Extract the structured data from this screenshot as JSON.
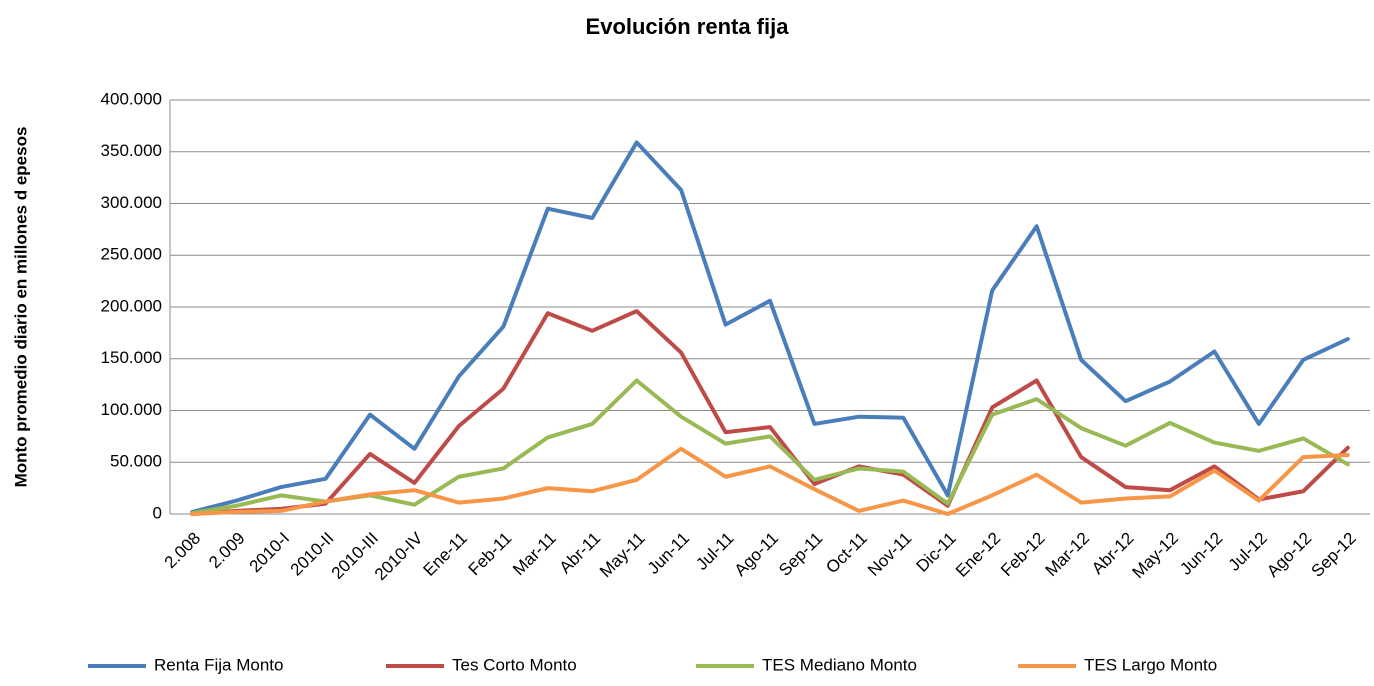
{
  "chart_data": {
    "type": "line",
    "title": "Evolución renta fija",
    "y_label": "Monto promedio diario en millones d epesos",
    "categories": [
      "2.008",
      "2.009",
      "2010-I",
      "2010-II",
      "2010-III",
      "2010-IV",
      "Ene-11",
      "Feb-11",
      "Mar-11",
      "Abr-11",
      "May-11",
      "Jun-11",
      "Jul-11",
      "Ago-11",
      "Sep-11",
      "Oct-11",
      "Nov-11",
      "Dic-11",
      "Ene-12",
      "Feb-12",
      "Mar-12",
      "Abr-12",
      "May-12",
      "Jun-12",
      "Jul-12",
      "Ago-12",
      "Sep-12"
    ],
    "series": [
      {
        "name": "Renta Fija Monto",
        "color": "#4a7ebb",
        "values": [
          2000,
          13000,
          26000,
          34000,
          96000,
          63000,
          133000,
          181000,
          295000,
          286000,
          359000,
          313000,
          183000,
          206000,
          87000,
          94000,
          93000,
          18000,
          216000,
          278000,
          149000,
          109000,
          128000,
          157000,
          87000,
          149000,
          169000
        ]
      },
      {
        "name": "Tes Corto Monto",
        "color": "#be4b48",
        "values": [
          0,
          3000,
          5000,
          10000,
          58000,
          30000,
          85000,
          121000,
          194000,
          177000,
          196000,
          156000,
          79000,
          84000,
          29000,
          46000,
          38000,
          8000,
          103000,
          129000,
          55000,
          26000,
          23000,
          46000,
          14000,
          22000,
          64000
        ]
      },
      {
        "name": "TES Mediano Monto",
        "color": "#98b954",
        "values": [
          1000,
          8000,
          18000,
          12000,
          18000,
          9000,
          36000,
          44000,
          74000,
          87000,
          129000,
          94000,
          68000,
          75000,
          33000,
          44000,
          41000,
          10000,
          96000,
          111000,
          83000,
          66000,
          88000,
          69000,
          61000,
          73000,
          48000
        ]
      },
      {
        "name": "TES Largo Monto",
        "color": "#f79646",
        "values": [
          0,
          2000,
          3000,
          12000,
          19000,
          23000,
          11000,
          15000,
          25000,
          22000,
          33000,
          63000,
          36000,
          46000,
          24000,
          3000,
          13000,
          0,
          18000,
          38000,
          11000,
          15000,
          17000,
          42000,
          13000,
          55000,
          57000
        ]
      }
    ],
    "ylim": [
      0,
      400000
    ],
    "yticks": [
      0,
      {
        "value": 50000,
        "label": "50.000"
      },
      {
        "value": 100000,
        "label": "100.000"
      },
      {
        "value": 150000,
        "label": "150.000"
      },
      {
        "value": 200000,
        "label": "200.000"
      },
      {
        "value": 250000,
        "label": "250.000"
      },
      {
        "value": 300000,
        "label": "300.000"
      },
      {
        "value": 350000,
        "label": "350.000"
      },
      {
        "value": 400000,
        "label": "400.000"
      }
    ],
    "grid": true,
    "legend": "bottom"
  }
}
